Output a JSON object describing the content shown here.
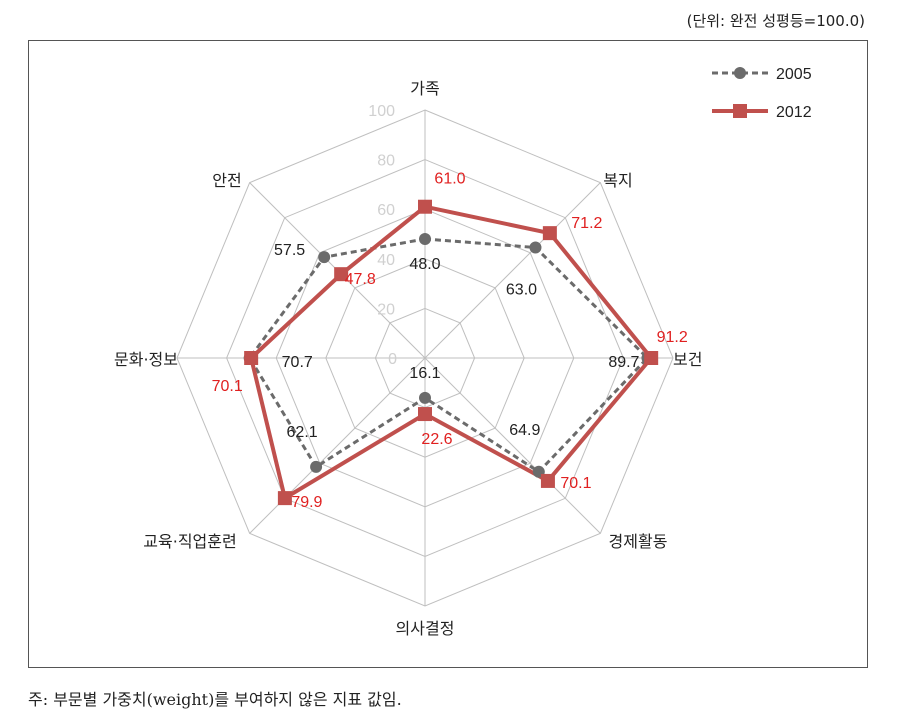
{
  "unit_label": "(단위: 완전 성평등=100.0)",
  "footnote": "주: 부문별 가중치(weight)를 부여하지 않은 지표 값임.",
  "colors": {
    "s2005": "#6b6b6b",
    "s2012": "#c0504d",
    "grid": "#bfbfbf",
    "tick": "#d0d0d0"
  },
  "chart_data": {
    "type": "radar",
    "axes": [
      "가족",
      "복지",
      "보건",
      "경제활동",
      "의사결정",
      "교육·직업훈련",
      "문화·정보",
      "안전"
    ],
    "range": [
      0,
      100
    ],
    "ticks": [
      0,
      20,
      40,
      60,
      80,
      100
    ],
    "legend_position": "top-right",
    "series": [
      {
        "name": "2005",
        "values": [
          48.0,
          63.0,
          89.7,
          64.9,
          16.1,
          62.1,
          70.7,
          57.5
        ]
      },
      {
        "name": "2012",
        "values": [
          61.0,
          71.2,
          91.2,
          70.1,
          22.6,
          79.9,
          70.1,
          47.8
        ]
      }
    ]
  }
}
